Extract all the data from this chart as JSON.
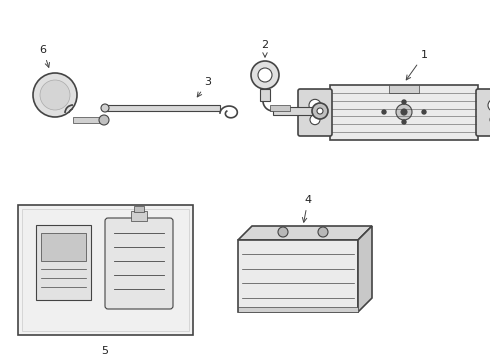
{
  "background_color": "#ffffff",
  "line_color": "#444444",
  "label_color": "#222222",
  "fill_light": "#e8e8e8",
  "fill_mid": "#d0d0d0",
  "fill_dark": "#b8b8b8"
}
